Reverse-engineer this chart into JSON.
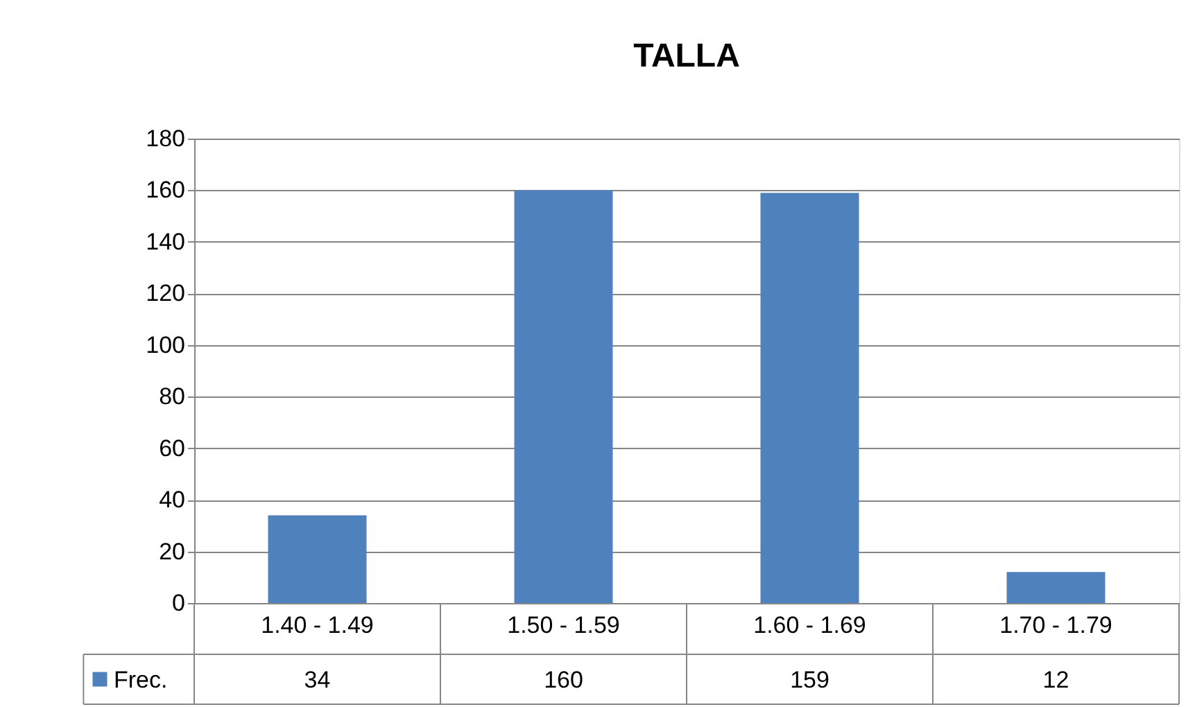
{
  "chart_data": {
    "type": "bar",
    "title": "TALLA",
    "categories": [
      "1.40 - 1.49",
      "1.50 - 1.59",
      "1.60 - 1.69",
      "1.70 - 1.79"
    ],
    "series": [
      {
        "name": "Frec.",
        "color": "#4f81bd",
        "values": [
          34,
          160,
          159,
          12
        ]
      }
    ],
    "ylim": [
      0,
      180
    ],
    "yticks": [
      0,
      20,
      40,
      60,
      80,
      100,
      120,
      140,
      160,
      180
    ],
    "grid": "y",
    "legend": "bottom left",
    "data_labels": true
  }
}
